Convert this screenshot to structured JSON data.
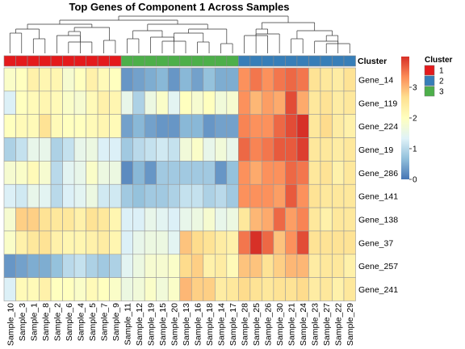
{
  "chart_data": {
    "type": "heatmap",
    "title": "Top Genes of Component 1 Across Samples",
    "columns": [
      "Sample_10",
      "Sample_3",
      "Sample_1",
      "Sample_8",
      "Sample_2",
      "Sample_6",
      "Sample_4",
      "Sample_5",
      "Sample_7",
      "Sample_9",
      "Sample_11",
      "Sample_12",
      "Sample_19",
      "Sample_15",
      "Sample_20",
      "Sample_13",
      "Sample_16",
      "Sample_18",
      "Sample_14",
      "Sample_17",
      "Sample_28",
      "Sample_25",
      "Sample_26",
      "Sample_30",
      "Sample_21",
      "Sample_24",
      "Sample_23",
      "Sample_27",
      "Sample_22",
      "Sample_29"
    ],
    "rows": [
      "Gene_14",
      "Gene_119",
      "Gene_224",
      "Gene_19",
      "Gene_286",
      "Gene_141",
      "Gene_138",
      "Gene_37",
      "Gene_257",
      "Gene_241"
    ],
    "clusters": [
      1,
      1,
      1,
      1,
      1,
      1,
      1,
      1,
      1,
      1,
      3,
      3,
      3,
      3,
      3,
      3,
      3,
      3,
      3,
      3,
      2,
      2,
      2,
      2,
      2,
      2,
      2,
      2,
      2,
      2
    ],
    "values": [
      [
        1.9,
        2.0,
        2.3,
        2.2,
        2.2,
        1.8,
        2.0,
        2.3,
        2.1,
        2.0,
        0.3,
        0.4,
        0.5,
        0.6,
        0.3,
        0.6,
        0.4,
        0.7,
        0.5,
        0.5,
        3.3,
        3.5,
        3.3,
        3.5,
        3.6,
        3.5,
        2.6,
        2.5,
        2.4,
        2.6
      ],
      [
        1.3,
        2.0,
        2.1,
        2.2,
        2.1,
        1.9,
        1.8,
        2.1,
        2.3,
        2.2,
        1.5,
        0.9,
        1.6,
        1.9,
        1.4,
        2.0,
        1.8,
        2.0,
        1.7,
        1.8,
        3.3,
        3.0,
        3.2,
        3.1,
        3.8,
        3.1,
        2.5,
        2.6,
        2.4,
        2.5
      ],
      [
        2.0,
        2.1,
        2.1,
        2.6,
        2.1,
        2.0,
        2.0,
        2.1,
        2.2,
        2.1,
        0.4,
        0.6,
        0.4,
        0.3,
        0.3,
        0.6,
        0.6,
        0.3,
        0.4,
        0.4,
        3.4,
        3.3,
        3.3,
        3.6,
        3.8,
        4.0,
        2.5,
        2.7,
        2.4,
        2.3
      ],
      [
        0.9,
        1.1,
        1.5,
        1.5,
        0.9,
        1.1,
        1.5,
        1.6,
        1.3,
        1.3,
        0.8,
        1.0,
        1.1,
        1.2,
        1.1,
        1.7,
        1.9,
        1.5,
        1.7,
        1.5,
        3.6,
        3.4,
        3.5,
        3.7,
        3.7,
        3.9,
        2.5,
        2.5,
        2.4,
        2.5
      ],
      [
        1.8,
        1.9,
        2.1,
        1.8,
        1.0,
        1.4,
        1.5,
        1.9,
        1.6,
        1.6,
        0.2,
        0.6,
        0.3,
        0.8,
        0.8,
        0.8,
        0.8,
        0.8,
        0.3,
        0.7,
        3.3,
        3.1,
        3.3,
        3.3,
        3.6,
        3.5,
        2.5,
        2.6,
        2.3,
        2.5
      ],
      [
        1.3,
        1.2,
        1.5,
        1.4,
        1.0,
        1.3,
        1.4,
        1.6,
        1.2,
        1.2,
        0.8,
        0.7,
        0.8,
        0.8,
        0.9,
        1.1,
        1.1,
        0.9,
        1.0,
        0.8,
        3.3,
        3.3,
        3.3,
        3.2,
        3.7,
        3.3,
        2.6,
        2.5,
        2.5,
        2.5
      ],
      [
        1.8,
        2.8,
        2.8,
        2.6,
        2.5,
        2.5,
        2.3,
        2.6,
        2.5,
        2.2,
        1.3,
        1.3,
        1.5,
        1.4,
        1.3,
        1.5,
        1.6,
        1.8,
        1.5,
        1.6,
        2.5,
        3.0,
        3.1,
        3.6,
        3.2,
        3.4,
        2.5,
        2.3,
        2.5,
        2.5
      ],
      [
        1.9,
        2.3,
        2.5,
        2.6,
        2.3,
        2.2,
        2.2,
        2.3,
        2.4,
        2.2,
        1.3,
        1.5,
        1.6,
        1.6,
        1.4,
        2.9,
        2.7,
        2.6,
        2.4,
        2.3,
        3.5,
        4.0,
        3.6,
        2.9,
        3.3,
        3.8,
        2.6,
        2.6,
        2.6,
        2.6
      ],
      [
        0.3,
        0.4,
        0.5,
        0.5,
        0.7,
        1.0,
        1.1,
        0.9,
        0.8,
        0.9,
        1.4,
        1.6,
        1.8,
        1.8,
        1.9,
        2.7,
        2.8,
        2.3,
        2.4,
        2.1,
        2.9,
        2.9,
        2.6,
        2.8,
        3.0,
        3.0,
        2.4,
        2.5,
        2.5,
        2.3
      ],
      [
        1.3,
        2.1,
        2.1,
        2.3,
        2.0,
        2.0,
        1.9,
        2.1,
        2.0,
        1.9,
        1.6,
        1.7,
        1.9,
        1.7,
        1.9,
        3.0,
        2.8,
        2.8,
        2.4,
        2.5,
        2.7,
        2.6,
        2.5,
        2.6,
        2.6,
        2.7,
        2.4,
        2.5,
        2.3,
        2.5
      ]
    ],
    "color_scale": {
      "min": 0,
      "max": 4,
      "colors": [
        "#4575b4",
        "#91bfdb",
        "#e0f3f8",
        "#ffffbf",
        "#fee090",
        "#fc8d59",
        "#d73027"
      ]
    },
    "colorbar_ticks": [
      0,
      1,
      2,
      3
    ],
    "annotation_label": "Cluster",
    "cluster_legend": {
      "title": "Cluster",
      "items": [
        {
          "label": "1",
          "color": "#e41a1c"
        },
        {
          "label": "2",
          "color": "#377eb8"
        },
        {
          "label": "3",
          "color": "#4daf4a"
        }
      ]
    },
    "dendrogram": "top",
    "grid": true
  }
}
